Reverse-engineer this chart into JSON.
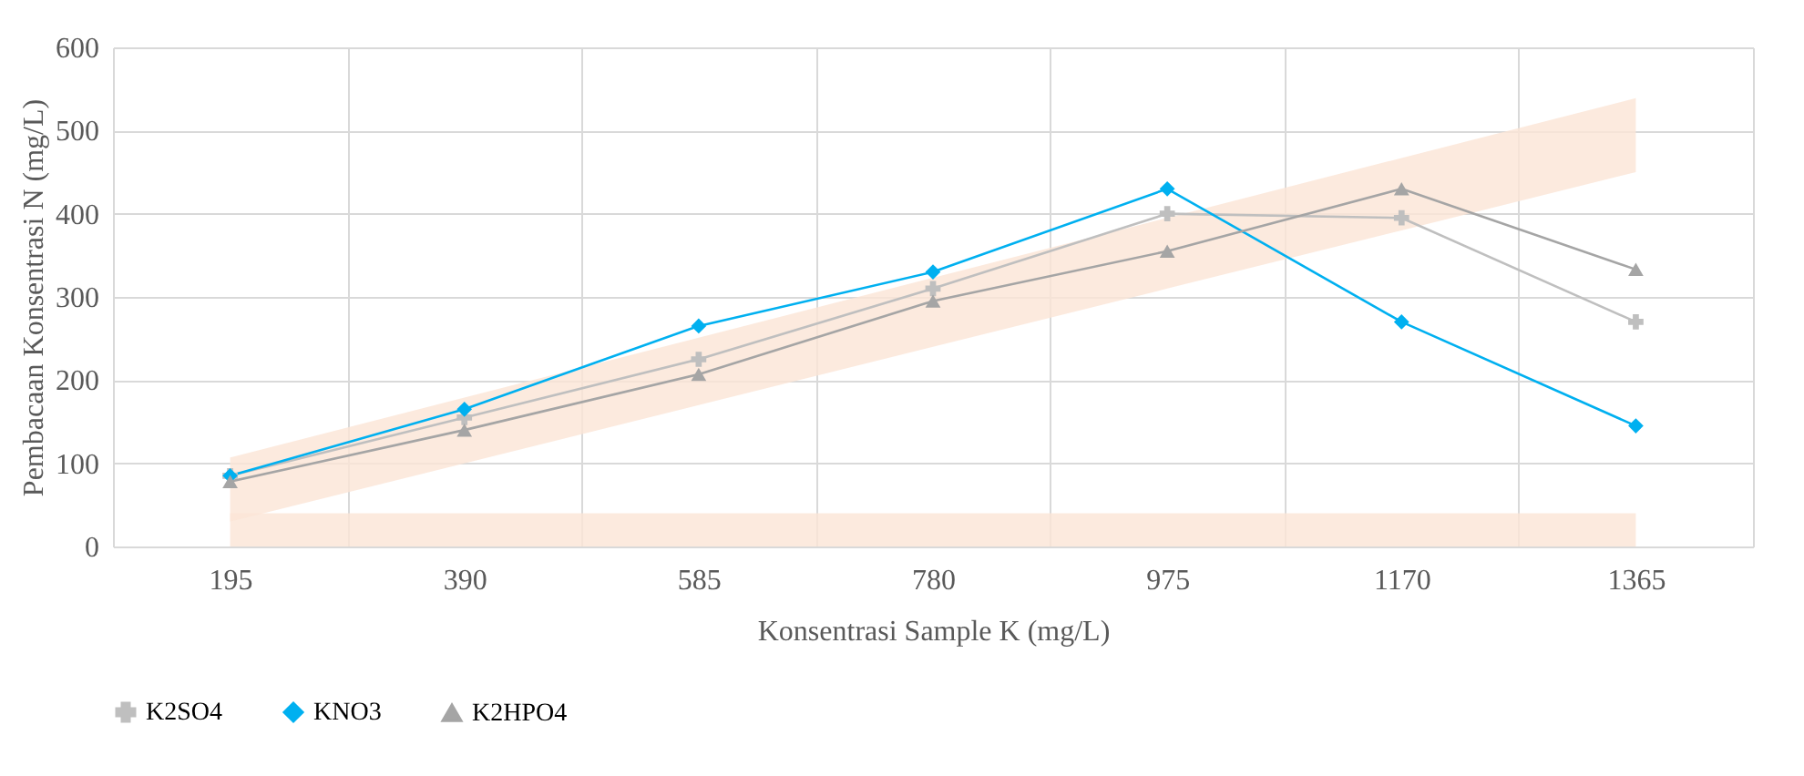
{
  "chart_data": {
    "type": "line",
    "xlabel": "Konsentrasi Sample K (mg/L)",
    "ylabel": "Pembacaan Konsentrasi N (mg/L)",
    "categories": [
      "195",
      "390",
      "585",
      "780",
      "975",
      "1170",
      "1365"
    ],
    "series": [
      {
        "name": "K2SO4",
        "color": "#bfbfbf",
        "marker": "cross",
        "values": [
          85,
          155,
          225,
          310,
          400,
          395,
          270
        ]
      },
      {
        "name": "KNO3",
        "color": "#00b0f0",
        "marker": "diamond",
        "values": [
          85,
          165,
          265,
          330,
          430,
          270,
          145
        ]
      },
      {
        "name": "K2HPO4",
        "color": "#a5a5a5",
        "marker": "triangle",
        "values": [
          78,
          140,
          207,
          295,
          355,
          430,
          333
        ]
      },
      {
        "type": "area",
        "color": "#fbe5d6",
        "values": [
          null,
          null,
          null,
          null,
          null,
          null,
          null
        ],
        "lower": [
          30,
          100,
          170,
          240,
          310,
          380,
          450
        ],
        "upper": [
          107,
          179,
          251,
          323,
          395,
          467,
          539
        ]
      }
    ],
    "bands": [
      {
        "axis": "y",
        "from": 0,
        "to": 40,
        "color": "#fbe5d6"
      }
    ],
    "ylim": [
      0,
      600
    ],
    "yticks": [
      0,
      100,
      200,
      300,
      400,
      500,
      600
    ],
    "grid": true,
    "legend": "bottom",
    "line_style": "solid"
  }
}
